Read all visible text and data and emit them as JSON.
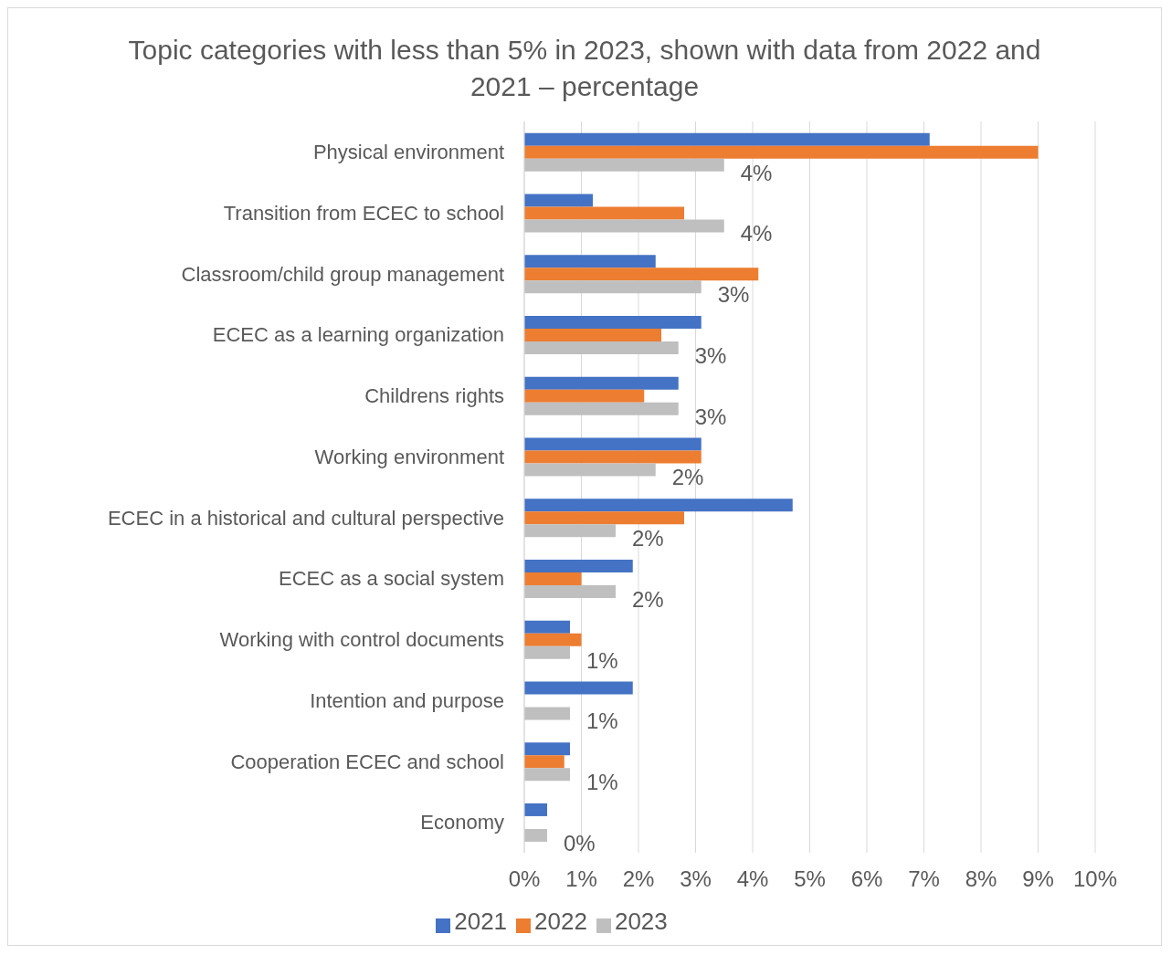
{
  "chart_data": {
    "type": "bar",
    "orientation": "horizontal",
    "title": "Topic categories with less than 5% in 2023, shown with data from 2022 and 2021 – percentage",
    "categories": [
      "Physical environment",
      "Transition from ECEC to school",
      "Classroom/child group management",
      "ECEC as a learning organization",
      "Childrens rights",
      "Working environment",
      "ECEC in a historical and cultural perspective",
      "ECEC as a social system",
      "Working with control documents",
      "Intention and purpose",
      "Cooperation ECEC and school",
      "Economy"
    ],
    "series": [
      {
        "name": "2021",
        "color": "#4472c4",
        "values": [
          7.1,
          1.2,
          2.3,
          3.1,
          2.7,
          3.1,
          4.7,
          1.9,
          0.8,
          1.9,
          0.8,
          0.4
        ]
      },
      {
        "name": "2022",
        "color": "#ed7d31",
        "values": [
          9.0,
          2.8,
          4.1,
          2.4,
          2.1,
          3.1,
          2.8,
          1.0,
          1.0,
          0,
          0.7,
          0
        ]
      },
      {
        "name": "2023",
        "color": "#bfbfbf",
        "values": [
          3.5,
          3.5,
          3.1,
          2.7,
          2.7,
          2.3,
          1.6,
          1.6,
          0.8,
          0.8,
          0.8,
          0.4
        ],
        "value_labels": [
          "4%",
          "4%",
          "3%",
          "3%",
          "3%",
          "2%",
          "2%",
          "2%",
          "1%",
          "1%",
          "1%",
          "0%"
        ]
      }
    ],
    "xlim": [
      0,
      10
    ],
    "xticks": [
      {
        "value": 0,
        "label": "0%"
      },
      {
        "value": 1,
        "label": "1%"
      },
      {
        "value": 2,
        "label": "2%"
      },
      {
        "value": 3,
        "label": "3%"
      },
      {
        "value": 4,
        "label": "4%"
      },
      {
        "value": 5,
        "label": "5%"
      },
      {
        "value": 6,
        "label": "6%"
      },
      {
        "value": 7,
        "label": "7%"
      },
      {
        "value": 8,
        "label": "8%"
      },
      {
        "value": 9,
        "label": "9%"
      },
      {
        "value": 10,
        "label": "10%"
      }
    ],
    "grid": "x",
    "legend": "bottom"
  }
}
